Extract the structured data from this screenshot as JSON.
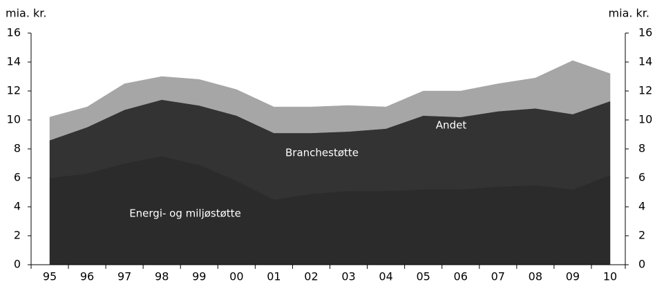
{
  "chart_data": {
    "type": "stacked_area",
    "ylabel": "mia. kr.",
    "y2label": "mia. kr.",
    "categories": [
      "95",
      "96",
      "97",
      "98",
      "99",
      "00",
      "01",
      "02",
      "03",
      "04",
      "05",
      "06",
      "07",
      "08",
      "09",
      "10"
    ],
    "series": [
      {
        "name": "Energi- og miljøstøtte",
        "color": "#2b2b2b",
        "values": [
          6.0,
          6.3,
          7.0,
          7.5,
          6.9,
          5.8,
          4.5,
          4.9,
          5.1,
          5.1,
          5.2,
          5.2,
          5.4,
          5.5,
          5.2,
          6.2
        ]
      },
      {
        "name": "Branchestøtte",
        "color": "#333333",
        "values": [
          2.6,
          3.2,
          3.7,
          3.9,
          4.1,
          4.5,
          4.6,
          4.2,
          4.1,
          4.3,
          5.1,
          5.0,
          5.2,
          5.3,
          5.2,
          5.1
        ]
      },
      {
        "name": "Andet",
        "color": "#a6a6a6",
        "values": [
          1.6,
          1.4,
          1.8,
          1.6,
          1.8,
          1.8,
          1.8,
          1.8,
          1.8,
          1.5,
          1.7,
          1.8,
          1.9,
          2.1,
          3.7,
          1.9
        ]
      }
    ],
    "ylim": [
      0,
      16
    ],
    "yticks": [
      0,
      2,
      4,
      6,
      8,
      10,
      12,
      14,
      16
    ],
    "y2lim": [
      0,
      16
    ],
    "y2ticks": [
      0,
      2,
      4,
      6,
      8,
      10,
      12,
      14,
      16
    ]
  }
}
